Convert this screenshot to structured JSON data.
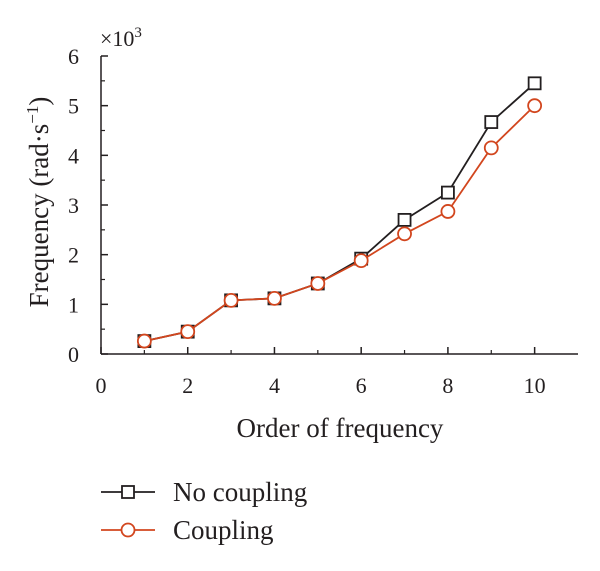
{
  "chart_data": {
    "type": "line",
    "xlabel": "Order of frequency",
    "ylabel_main": "Frequency (rad·s",
    "ylabel_sup": "−1",
    "ylabel_close": ")",
    "y_multiplier_base": "×10",
    "y_multiplier_exp": "3",
    "xlim": [
      0,
      11
    ],
    "ylim": [
      0,
      6
    ],
    "x_ticks": [
      0,
      2,
      4,
      6,
      8,
      10
    ],
    "y_ticks": [
      0,
      1,
      2,
      3,
      4,
      5,
      6
    ],
    "x": [
      1,
      2,
      3,
      4,
      5,
      6,
      7,
      8,
      9,
      10
    ],
    "series": [
      {
        "name": "No coupling",
        "marker": "square",
        "color": "#231f20",
        "values": [
          0.26,
          0.45,
          1.08,
          1.12,
          1.42,
          1.92,
          2.7,
          3.25,
          4.67,
          5.45
        ]
      },
      {
        "name": "Coupling",
        "marker": "circle",
        "color": "#d2461e",
        "values": [
          0.26,
          0.45,
          1.08,
          1.12,
          1.42,
          1.88,
          2.42,
          2.87,
          4.15,
          5.0
        ]
      }
    ],
    "legend_position": "bottom-left",
    "grid": false
  }
}
